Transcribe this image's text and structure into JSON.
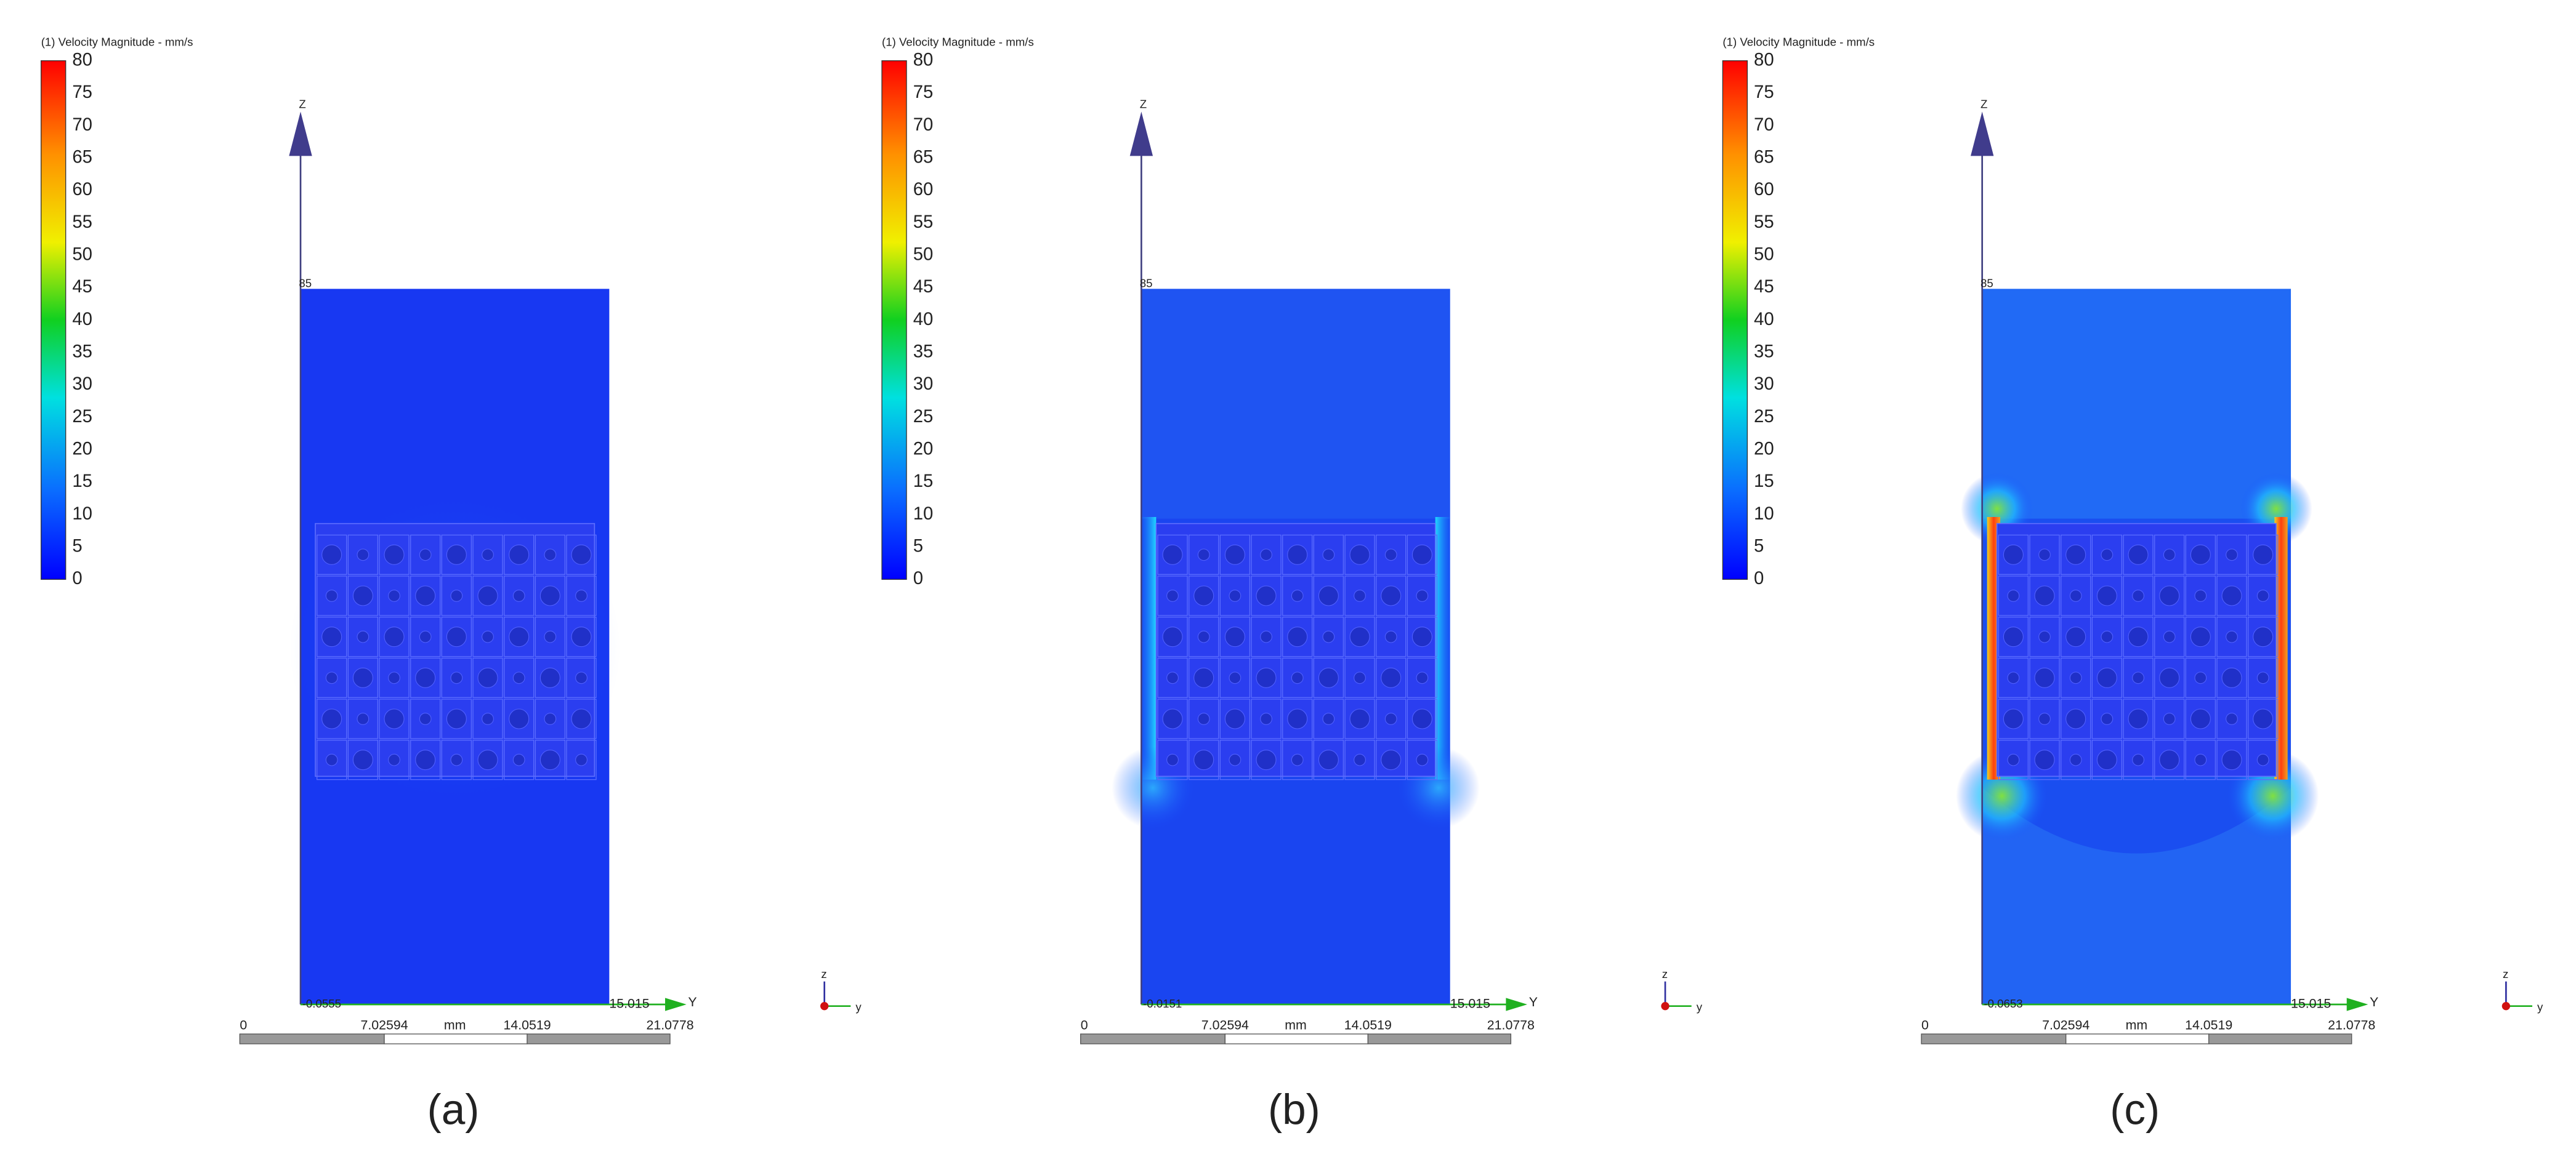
{
  "panels": [
    {
      "legend_title": "(1) Velocity Magnitude - mm/s",
      "legend_ticks": [
        0,
        5,
        10,
        15,
        20,
        25,
        30,
        35,
        40,
        45,
        50,
        55,
        60,
        65,
        70,
        75,
        80
      ],
      "axis_z": "Z",
      "axis_y": "Y",
      "z_max": "85",
      "y_min": "-0.0555",
      "y_max": "15.015",
      "scale_labels": [
        "0",
        "7.02594",
        "14.0519",
        "21.0778"
      ],
      "scale_unit": "mm",
      "triad_z": "z",
      "triad_y": "y",
      "caption": "(a)"
    },
    {
      "legend_title": "(1) Velocity Magnitude - mm/s",
      "legend_ticks": [
        0,
        5,
        10,
        15,
        20,
        25,
        30,
        35,
        40,
        45,
        50,
        55,
        60,
        65,
        70,
        75,
        80
      ],
      "axis_z": "Z",
      "axis_y": "Y",
      "z_max": "85",
      "y_min": "-0.0151",
      "y_max": "15.015",
      "scale_labels": [
        "0",
        "7.02594",
        "14.0519",
        "21.0778"
      ],
      "scale_unit": "mm",
      "triad_z": "z",
      "triad_y": "y",
      "caption": "(b)"
    },
    {
      "legend_title": "(1) Velocity Magnitude - mm/s",
      "legend_ticks": [
        0,
        5,
        10,
        15,
        20,
        25,
        30,
        35,
        40,
        45,
        50,
        55,
        60,
        65,
        70,
        75,
        80
      ],
      "axis_z": "Z",
      "axis_y": "Y",
      "z_max": "85",
      "y_min": "-0.0653",
      "y_max": "15.015",
      "scale_labels": [
        "0",
        "7.02594",
        "14.0519",
        "21.0778"
      ],
      "scale_unit": "mm",
      "triad_z": "z",
      "triad_y": "y",
      "caption": "(c)"
    }
  ]
}
